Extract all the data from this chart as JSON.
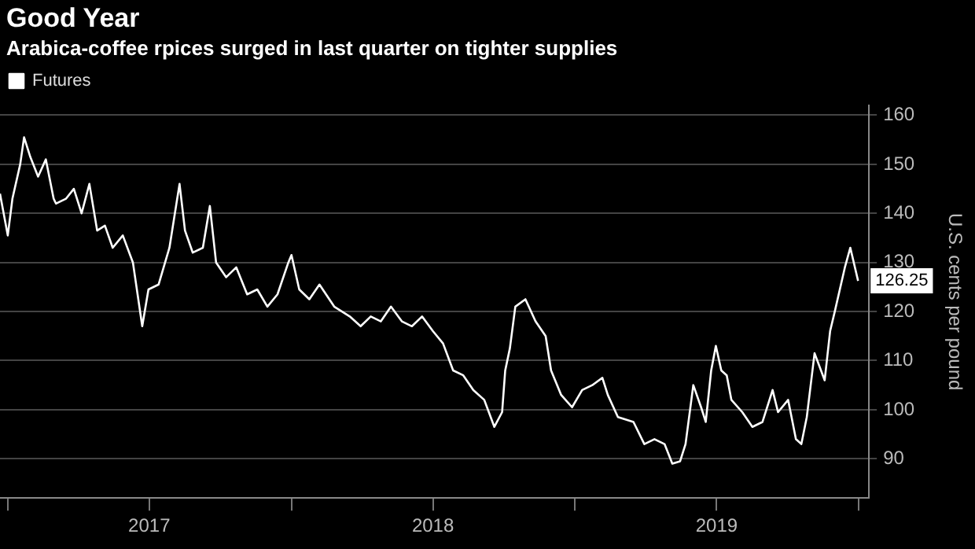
{
  "chart_data": {
    "type": "line",
    "title": "Good Year",
    "subtitle": "Arabica-coffee rpices surged in last quarter on tighter supplies",
    "ylabel": "U.S. cents per pound",
    "x": [
      "2016-12-22",
      "2017-01-01",
      "2017-01-07",
      "2017-01-17",
      "2017-01-22",
      "2017-01-30",
      "2017-02-09",
      "2017-02-19",
      "2017-03-01",
      "2017-03-04",
      "2017-03-17",
      "2017-03-27",
      "2017-04-06",
      "2017-04-16",
      "2017-04-26",
      "2017-05-06",
      "2017-05-16",
      "2017-05-29",
      "2017-06-11",
      "2017-06-23",
      "2017-07-01",
      "2017-07-14",
      "2017-07-28",
      "2017-08-10",
      "2017-08-17",
      "2017-08-27",
      "2017-09-09",
      "2017-09-18",
      "2017-09-26",
      "2017-10-09",
      "2017-10-22",
      "2017-11-05",
      "2017-11-18",
      "2017-12-01",
      "2017-12-14",
      "2017-12-28",
      "2018-01-01",
      "2018-01-11",
      "2018-01-24",
      "2018-02-06",
      "2018-02-25",
      "2018-03-17",
      "2018-03-31",
      "2018-04-13",
      "2018-04-26",
      "2018-05-09",
      "2018-05-23",
      "2018-06-05",
      "2018-06-18",
      "2018-07-02",
      "2018-07-15",
      "2018-07-28",
      "2018-08-10",
      "2018-08-23",
      "2018-09-06",
      "2018-09-19",
      "2018-09-29",
      "2018-10-03",
      "2018-10-09",
      "2018-10-16",
      "2018-10-29",
      "2018-11-11",
      "2018-11-24",
      "2018-12-01",
      "2018-12-14",
      "2018-12-28",
      "2019-01-10",
      "2019-01-23",
      "2019-02-05",
      "2019-02-12",
      "2019-02-25",
      "2019-03-17",
      "2019-03-31",
      "2019-04-13",
      "2019-04-26",
      "2019-05-06",
      "2019-05-16",
      "2019-05-23",
      "2019-06-02",
      "2019-06-12",
      "2019-06-18",
      "2019-06-25",
      "2019-07-01",
      "2019-07-08",
      "2019-07-15",
      "2019-07-21",
      "2019-08-04",
      "2019-08-17",
      "2019-08-30",
      "2019-09-12",
      "2019-09-19",
      "2019-10-02",
      "2019-10-12",
      "2019-10-19",
      "2019-10-26",
      "2019-11-05",
      "2019-11-18",
      "2019-11-25",
      "2019-12-01",
      "2019-12-14",
      "2019-12-21",
      "2019-12-31"
    ],
    "series": [
      {
        "name": "Futures",
        "color": "#ffffff",
        "values": [
          144,
          135.5,
          143,
          150,
          155.5,
          151.5,
          147.5,
          151,
          143,
          142,
          143,
          145,
          140,
          146,
          136.5,
          137.5,
          133,
          135.5,
          130,
          117,
          124.5,
          125.5,
          133,
          146,
          136.5,
          132,
          133,
          141.5,
          130,
          127,
          129,
          123.5,
          124.5,
          121,
          123.5,
          130,
          131.5,
          124.5,
          122.5,
          125.5,
          121,
          119,
          117,
          119,
          118,
          121,
          118,
          117,
          119,
          116,
          113.5,
          108,
          107,
          104,
          102,
          96.5,
          99.5,
          108,
          112.5,
          121,
          122.5,
          118,
          115,
          108,
          103,
          100.5,
          104,
          105,
          106.5,
          103,
          98.5,
          97.5,
          93,
          94,
          93,
          89,
          89.5,
          93,
          105,
          100.5,
          97.5,
          108,
          113,
          108,
          107,
          102,
          99.5,
          96.5,
          97.5,
          104,
          99.5,
          102,
          94,
          93,
          98.5,
          111.5,
          106,
          116,
          120,
          129,
          133,
          126.25
        ]
      }
    ],
    "ylim": [
      82,
      162
    ],
    "yticks": [
      90,
      100,
      110,
      120,
      130,
      140,
      150,
      160
    ],
    "xlim": [
      "2016-12-22",
      "2020-01-14"
    ],
    "xticks": [
      {
        "value": "2017-01-01",
        "label": null
      },
      {
        "value": "2017-07-02",
        "label": "2017"
      },
      {
        "value": "2018-01-01",
        "label": null
      },
      {
        "value": "2018-07-02",
        "label": "2018"
      },
      {
        "value": "2019-01-01",
        "label": null
      },
      {
        "value": "2019-07-02",
        "label": "2019"
      },
      {
        "value": "2020-01-01",
        "label": null
      }
    ],
    "annotations": [
      {
        "text": "126.25",
        "x": "2019-12-31",
        "y": 126.25
      }
    ],
    "grid": "y",
    "legend": "top left",
    "marker": "none",
    "line_style": "solid"
  }
}
